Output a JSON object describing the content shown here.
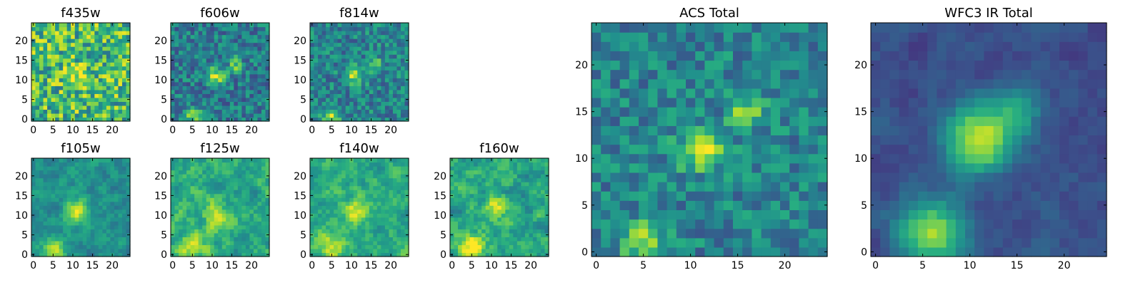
{
  "colormap": "viridis",
  "colors": {
    "viridis_low": "#440154",
    "viridis_mid": "#21918c",
    "viridis_high": "#fde725",
    "frame": "#000000"
  },
  "chart_data": [
    {
      "type": "heatmap",
      "title": "f435w",
      "grid_size": 25,
      "xticks": [
        0,
        5,
        10,
        15,
        20
      ],
      "yticks": [
        0,
        5,
        10,
        15,
        20
      ],
      "sources": [
        [
          11,
          11,
          0.25,
          2.0
        ]
      ],
      "noise": 0.3,
      "base": 0.68,
      "seed": 11,
      "smooth": 0
    },
    {
      "type": "heatmap",
      "title": "f606w",
      "grid_size": 25,
      "xticks": [
        0,
        5,
        10,
        15,
        20
      ],
      "yticks": [
        0,
        5,
        10,
        15,
        20
      ],
      "sources": [
        [
          11,
          11,
          0.5,
          1.5
        ],
        [
          16,
          14,
          0.35,
          1.2
        ],
        [
          5,
          1,
          0.45,
          1.5
        ]
      ],
      "noise": 0.2,
      "base": 0.42,
      "seed": 22,
      "smooth": 0
    },
    {
      "type": "heatmap",
      "title": "f814w",
      "grid_size": 25,
      "xticks": [
        0,
        5,
        10,
        15,
        20
      ],
      "yticks": [
        0,
        5,
        10,
        15,
        20
      ],
      "sources": [
        [
          11,
          11,
          0.45,
          1.5
        ],
        [
          16,
          14,
          0.35,
          1.2
        ],
        [
          5,
          1,
          0.45,
          1.5
        ]
      ],
      "noise": 0.2,
      "base": 0.45,
      "seed": 33,
      "smooth": 0
    },
    {
      "type": "heatmap",
      "title": "f105w",
      "grid_size": 25,
      "xticks": [
        0,
        5,
        10,
        15,
        20
      ],
      "yticks": [
        0,
        5,
        10,
        15,
        20
      ],
      "sources": [
        [
          11,
          11,
          0.45,
          2.0
        ],
        [
          5,
          1,
          0.4,
          2.0
        ]
      ],
      "noise": 0.22,
      "base": 0.5,
      "seed": 44,
      "smooth": 1
    },
    {
      "type": "heatmap",
      "title": "f125w",
      "grid_size": 25,
      "xticks": [
        0,
        5,
        10,
        15,
        20
      ],
      "yticks": [
        0,
        5,
        10,
        15,
        20
      ],
      "sources": [
        [
          11,
          11,
          0.3,
          2.0
        ],
        [
          5,
          2,
          0.3,
          2.5
        ]
      ],
      "noise": 0.28,
      "base": 0.62,
      "seed": 55,
      "smooth": 1
    },
    {
      "type": "heatmap",
      "title": "f140w",
      "grid_size": 25,
      "xticks": [
        0,
        5,
        10,
        15,
        20
      ],
      "yticks": [
        0,
        5,
        10,
        15,
        20
      ],
      "sources": [
        [
          11,
          11,
          0.35,
          2.0
        ],
        [
          5,
          2,
          0.3,
          2.5
        ]
      ],
      "noise": 0.25,
      "base": 0.62,
      "seed": 66,
      "smooth": 1
    },
    {
      "type": "heatmap",
      "title": "f160w",
      "grid_size": 25,
      "xticks": [
        0,
        5,
        10,
        15,
        20
      ],
      "yticks": [
        0,
        5,
        10,
        15,
        20
      ],
      "sources": [
        [
          11,
          12,
          0.3,
          2.0
        ],
        [
          5,
          2,
          0.45,
          2.5
        ]
      ],
      "noise": 0.28,
      "base": 0.58,
      "seed": 77,
      "smooth": 1
    },
    {
      "type": "heatmap",
      "title": "ACS Total",
      "grid_size": 25,
      "xticks": [
        0,
        5,
        10,
        15,
        20
      ],
      "yticks": [
        0,
        5,
        10,
        15,
        20
      ],
      "sources": [
        [
          11,
          11,
          0.55,
          1.5
        ],
        [
          16,
          15,
          0.4,
          1.2
        ],
        [
          5,
          1,
          0.45,
          1.5
        ]
      ],
      "noise": 0.18,
      "base": 0.45,
      "seed": 88,
      "smooth": 0
    },
    {
      "type": "heatmap",
      "title": "WFC3 IR Total",
      "grid_size": 25,
      "xticks": [
        0,
        5,
        10,
        15,
        20
      ],
      "yticks": [
        0,
        5,
        10,
        15,
        20
      ],
      "sources": [
        [
          11,
          12,
          0.7,
          2.5
        ],
        [
          15,
          15,
          0.3,
          1.8
        ],
        [
          6,
          2,
          0.6,
          2.5
        ]
      ],
      "noise": 0.12,
      "base": 0.25,
      "seed": 99,
      "smooth": 1
    }
  ]
}
